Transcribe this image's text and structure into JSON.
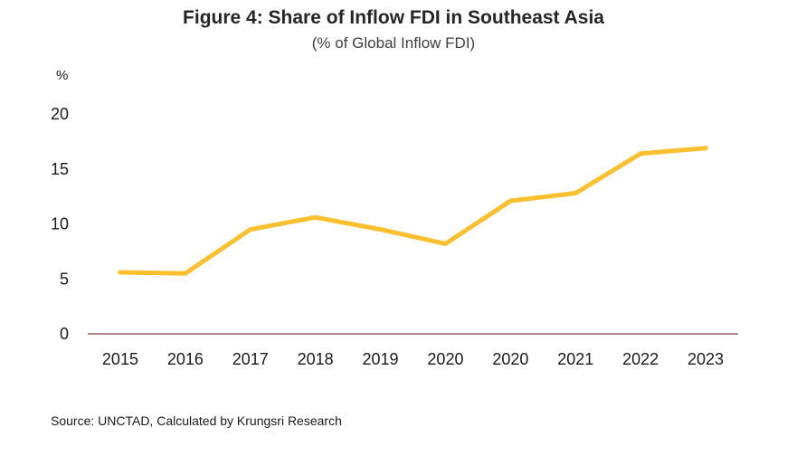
{
  "chart_data": {
    "type": "line",
    "title": "Figure 4: Share of Inflow FDI in Southeast Asia",
    "subtitle": "(% of Global Inflow FDI)",
    "ylabel": "%",
    "xlabel": "",
    "categories": [
      "2015",
      "2016",
      "2017",
      "2018",
      "2019",
      "2020",
      "2020",
      "2021",
      "2022",
      "2023"
    ],
    "series": [
      {
        "values": [
          5.6,
          5.5,
          9.5,
          10.6,
          9.5,
          8.2,
          12.1,
          12.8,
          16.4,
          16.9
        ],
        "color": "#FCC02E"
      }
    ],
    "ylim": [
      0,
      20
    ],
    "yticks": [
      "0",
      "5",
      "10",
      "15",
      "20"
    ],
    "grid": false,
    "legend": "none",
    "axis_color": "#7f3f3f",
    "source": "Source: UNCTAD, Calculated by Krungsri Research"
  }
}
